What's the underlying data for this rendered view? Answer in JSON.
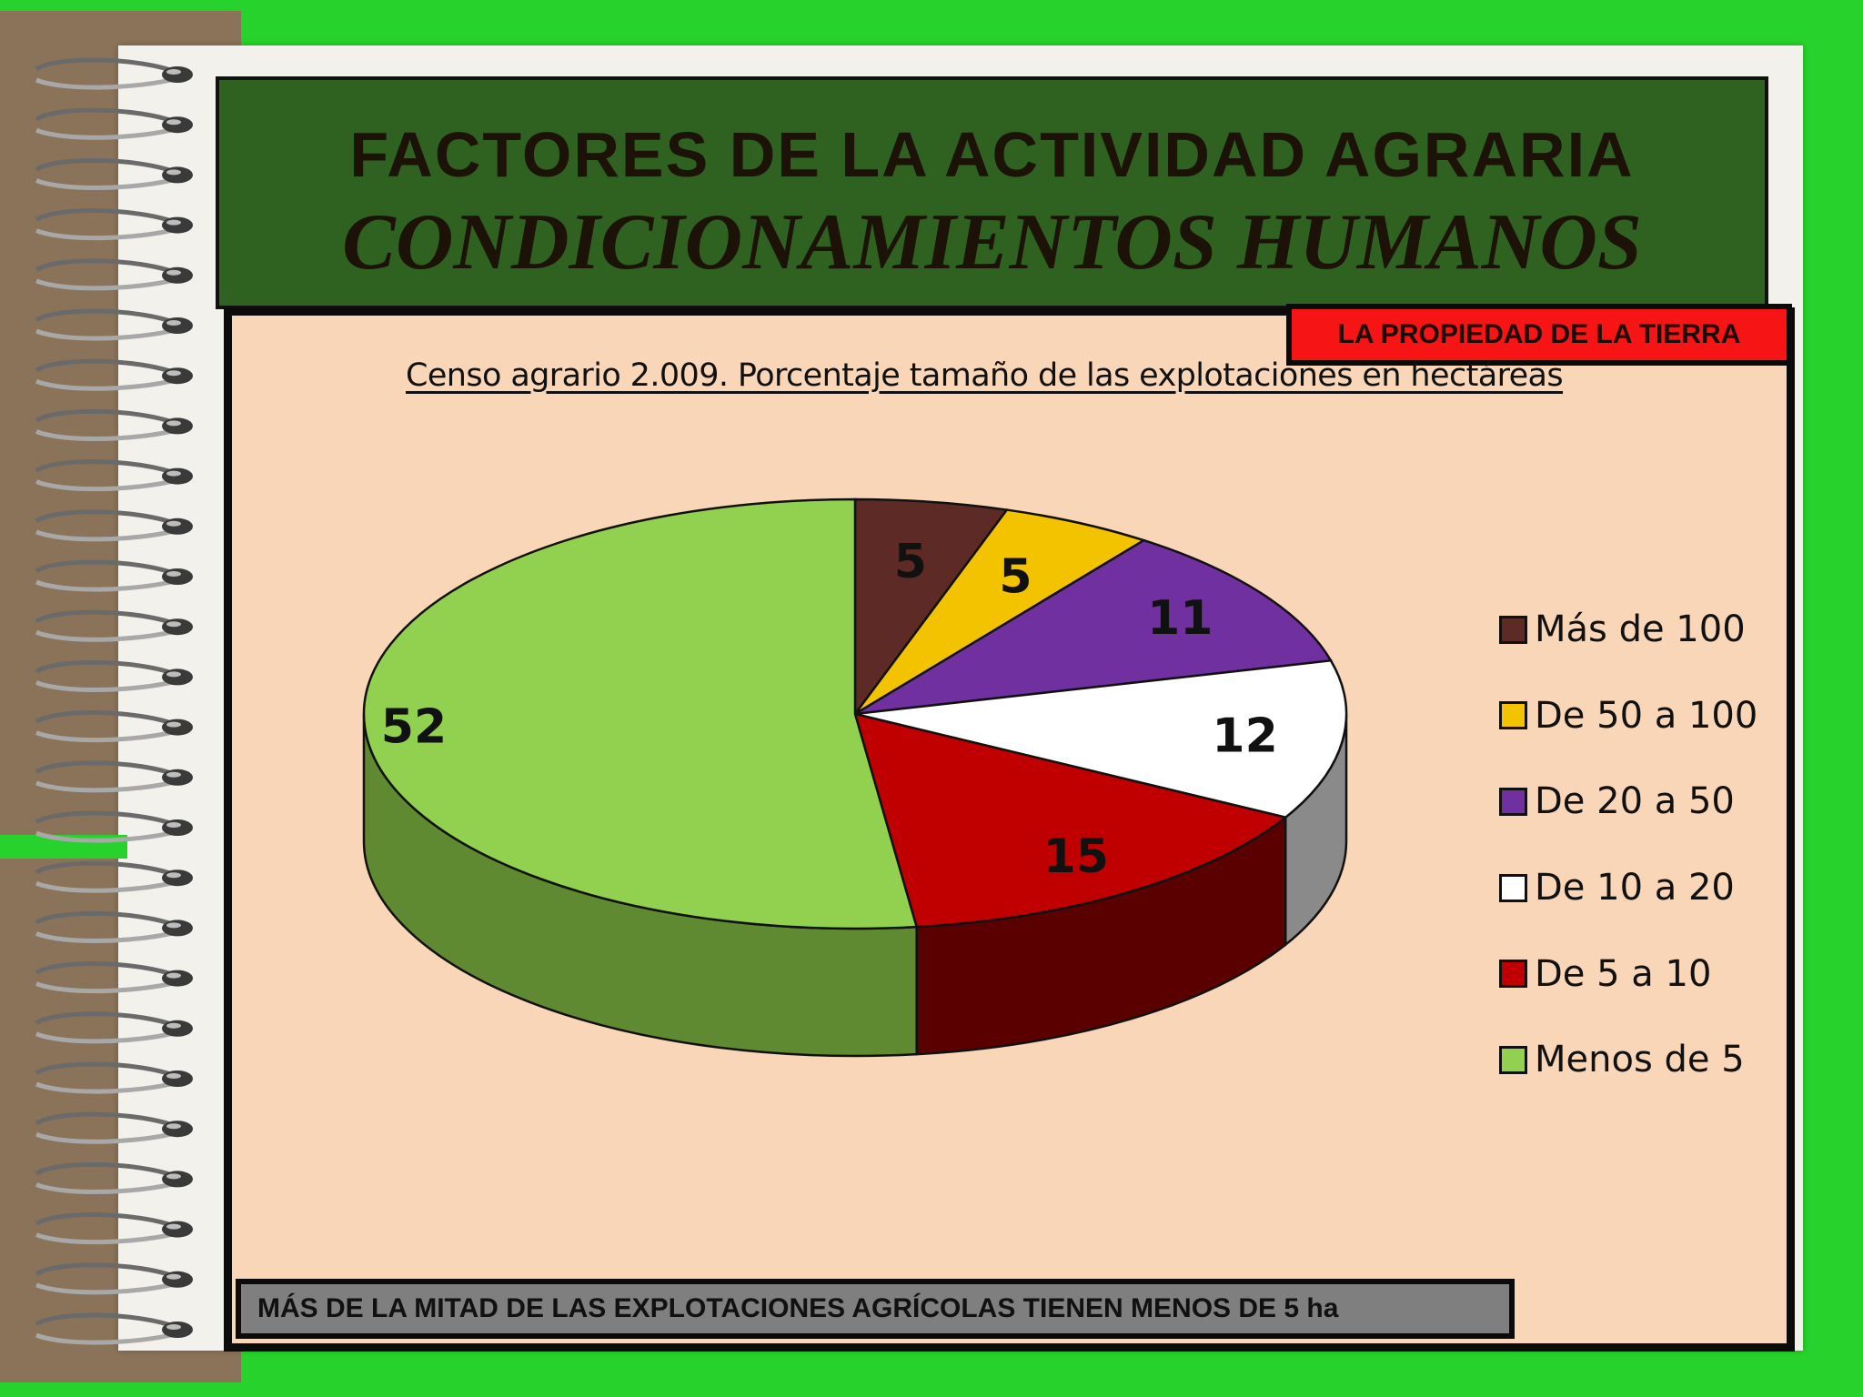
{
  "slide": {
    "title": "FACTORES DE LA ACTIVIDAD AGRARIA",
    "subtitle": "CONDICIONAMIENTOS HUMANOS",
    "tag": "LA PROPIEDAD DE LA TIERRA",
    "footer": "MÁS DE LA MITAD DE LAS EXPLOTACIONES AGRÍCOLAS TIENEN MENOS DE 5 ha"
  },
  "colors": {
    "background": "#28d22c",
    "title_bar": "#2f6121",
    "chart_panel": "#fad6b8",
    "tag": "#f61414",
    "footer": "#7f7f7f"
  },
  "chart_data": {
    "type": "pie",
    "style": "3d",
    "title": "Censo agrario 2.009. Porcentaje tamaño de las explotaciones en hectáreas",
    "legend_position": "right",
    "categories": [
      "Más de 100",
      "De 50 a 100",
      "De 20 a 50",
      "De 10 a 20",
      "De 5 a 10",
      "Menos de 5"
    ],
    "values": [
      5,
      5,
      11,
      12,
      15,
      52
    ],
    "colors": [
      "#5e2a26",
      "#f4c300",
      "#7030a0",
      "#ffffff",
      "#c00000",
      "#92d050"
    ],
    "side_colors": [
      "#3c1816",
      "#a88500",
      "#4a1d6e",
      "#8a8a8a",
      "#5a0000",
      "#5f8a32"
    ],
    "data_labels": [
      "5",
      "5",
      "11",
      "12",
      "15",
      "52"
    ]
  }
}
